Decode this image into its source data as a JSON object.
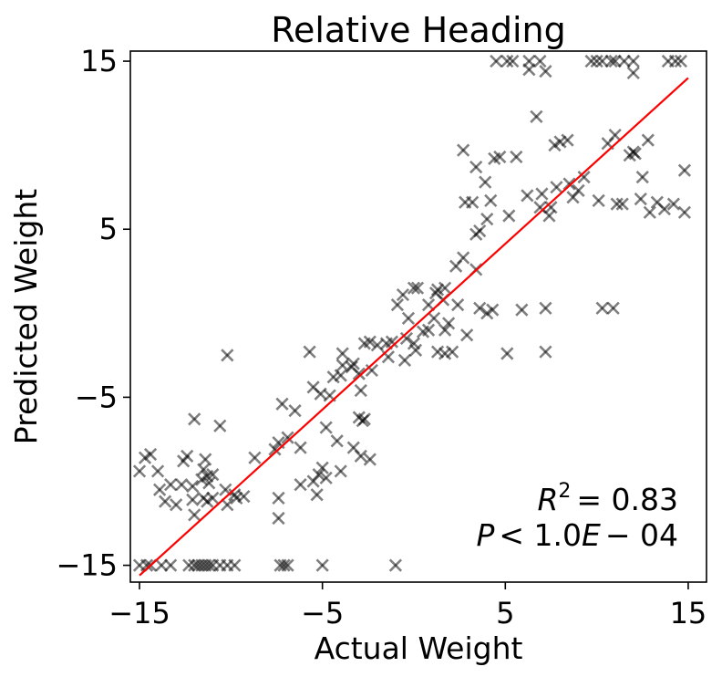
{
  "chart_data": {
    "type": "scatter",
    "title": "Relative Heading",
    "xlabel": "Actual Weight",
    "ylabel": "Predicted Weight",
    "xlim": [
      -15.5,
      16.0
    ],
    "ylim": [
      -16.0,
      15.6
    ],
    "xticks": [
      -15,
      -5,
      5,
      15
    ],
    "xtick_labels": [
      "−15",
      "−5",
      "5",
      "15"
    ],
    "yticks": [
      -15,
      -5,
      5,
      15
    ],
    "ytick_labels": [
      "−15",
      "−5",
      "5",
      "15"
    ],
    "grid": false,
    "marker": "x",
    "marker_color": "#000000",
    "marker_alpha": 0.5,
    "fit_line": {
      "color": "#ff0000",
      "x": [
        -15.0,
        15.0
      ],
      "y": [
        -15.6,
        14.0
      ]
    },
    "annotations": {
      "r2_symbol": "R",
      "r2_power": "2",
      "r2_value": "= 0.83",
      "p_symbol": "P",
      "p_value": "< 1.0",
      "p_symbol2": "E",
      "p_exp": "− 04"
    },
    "points": [
      [
        14.3,
        15
      ],
      [
        14.6,
        15
      ],
      [
        13.9,
        15
      ],
      [
        12.0,
        15
      ],
      [
        11.5,
        15
      ],
      [
        11.0,
        15
      ],
      [
        10.8,
        15
      ],
      [
        10.3,
        15
      ],
      [
        10.0,
        15
      ],
      [
        9.7,
        15
      ],
      [
        6.9,
        15
      ],
      [
        6.3,
        15
      ],
      [
        5.4,
        15
      ],
      [
        5.1,
        15
      ],
      [
        4.5,
        15
      ],
      [
        12.0,
        14.3
      ],
      [
        7.2,
        14.4
      ],
      [
        6.3,
        14.5
      ],
      [
        6.7,
        11.7
      ],
      [
        11.0,
        10.6
      ],
      [
        12.8,
        10.3
      ],
      [
        8.4,
        10.3
      ],
      [
        8.0,
        10.2
      ],
      [
        7.7,
        10.0
      ],
      [
        10.6,
        10.1
      ],
      [
        12.1,
        9.5
      ],
      [
        11.8,
        9.4
      ],
      [
        12.0,
        9.6
      ],
      [
        2.7,
        9.7
      ],
      [
        5.6,
        9.3
      ],
      [
        4.7,
        9.3
      ],
      [
        4.4,
        9.2
      ],
      [
        3.4,
        8.7
      ],
      [
        14.8,
        8.5
      ],
      [
        12.5,
        8.1
      ],
      [
        9.3,
        8.1
      ],
      [
        8.5,
        7.7
      ],
      [
        7.8,
        7.5
      ],
      [
        9.0,
        7.3
      ],
      [
        6.2,
        7.0
      ],
      [
        7.0,
        7.1
      ],
      [
        3.9,
        7.8
      ],
      [
        8.7,
        6.9
      ],
      [
        10.1,
        6.7
      ],
      [
        11.1,
        6.5
      ],
      [
        11.4,
        6.5
      ],
      [
        12.4,
        6.8
      ],
      [
        13.3,
        6.6
      ],
      [
        14.2,
        6.5
      ],
      [
        4.2,
        6.7
      ],
      [
        3.2,
        6.6
      ],
      [
        2.8,
        6.6
      ],
      [
        6.9,
        6.3
      ],
      [
        7.5,
        6.3
      ],
      [
        13.7,
        6.2
      ],
      [
        14.8,
        6.0
      ],
      [
        12.9,
        6.0
      ],
      [
        7.4,
        5.8
      ],
      [
        5.2,
        5.8
      ],
      [
        4.0,
        5.6
      ],
      [
        3.6,
        4.9
      ],
      [
        3.4,
        4.7
      ],
      [
        2.7,
        3.3
      ],
      [
        2.3,
        2.8
      ],
      [
        3.4,
        2.6
      ],
      [
        0.0,
        1.5
      ],
      [
        0.2,
        1.5
      ],
      [
        1.3,
        1.4
      ],
      [
        1.7,
        1.5
      ],
      [
        1.2,
        1.2
      ],
      [
        1.6,
        0.8
      ],
      [
        -0.6,
        1.1
      ],
      [
        -0.9,
        0.5
      ],
      [
        0.8,
        0.5
      ],
      [
        2.4,
        0.5
      ],
      [
        3.6,
        0.3
      ],
      [
        4.0,
        0.0
      ],
      [
        4.3,
        0.2
      ],
      [
        5.9,
        0.2
      ],
      [
        7.2,
        0.3
      ],
      [
        10.3,
        0.3
      ],
      [
        10.9,
        0.3
      ],
      [
        -0.3,
        -0.3
      ],
      [
        1.1,
        -0.3
      ],
      [
        1.9,
        -0.6
      ],
      [
        1.7,
        -1.0
      ],
      [
        2.9,
        -1.3
      ],
      [
        0.5,
        -1.1
      ],
      [
        0.8,
        -1.0
      ],
      [
        -2.7,
        -1.8
      ],
      [
        -2.4,
        -1.7
      ],
      [
        -2.0,
        -1.9
      ],
      [
        -1.5,
        -1.8
      ],
      [
        -1.2,
        -1.7
      ],
      [
        -0.4,
        -1.5
      ],
      [
        0.0,
        -1.8
      ],
      [
        0.1,
        -2.2
      ],
      [
        -5.7,
        -2.3
      ],
      [
        -10.2,
        -2.5
      ],
      [
        -3.9,
        -2.4
      ],
      [
        -1.4,
        -2.6
      ],
      [
        -0.5,
        -2.8
      ],
      [
        1.3,
        -2.3
      ],
      [
        1.7,
        -2.4
      ],
      [
        2.1,
        -2.3
      ],
      [
        5.1,
        -2.4
      ],
      [
        7.2,
        -2.3
      ],
      [
        -3.3,
        -3.0
      ],
      [
        -3.4,
        -3.2
      ],
      [
        -3.9,
        -3.1
      ],
      [
        -3.0,
        -3.6
      ],
      [
        -2.3,
        -3.4
      ],
      [
        -4.0,
        -3.7
      ],
      [
        -4.4,
        -3.8
      ],
      [
        -5.1,
        -4.8
      ],
      [
        -5.5,
        -4.4
      ],
      [
        -2.9,
        -4.6
      ],
      [
        -4.6,
        -4.9
      ],
      [
        -7.2,
        -5.4
      ],
      [
        -6.5,
        -5.8
      ],
      [
        -3.0,
        -6.2
      ],
      [
        -2.7,
        -6.3
      ],
      [
        -2.8,
        -6.4
      ],
      [
        -12.0,
        -6.3
      ],
      [
        -10.6,
        -6.7
      ],
      [
        -4.8,
        -6.8
      ],
      [
        -6.9,
        -7.4
      ],
      [
        -7.4,
        -7.7
      ],
      [
        -4.2,
        -7.6
      ],
      [
        -6.2,
        -8.0
      ],
      [
        -7.6,
        -8.1
      ],
      [
        -3.3,
        -8.0
      ],
      [
        -2.4,
        -8.7
      ],
      [
        -2.9,
        -8.5
      ],
      [
        -8.7,
        -8.6
      ],
      [
        -14.4,
        -8.4
      ],
      [
        -14.7,
        -8.6
      ],
      [
        -11.4,
        -8.7
      ],
      [
        -12.4,
        -8.5
      ],
      [
        -12.6,
        -8.8
      ],
      [
        -14.0,
        -9.4
      ],
      [
        -15.0,
        -9.4
      ],
      [
        -11.5,
        -9.3
      ],
      [
        -11.3,
        -9.7
      ],
      [
        -11.0,
        -9.6
      ],
      [
        -5.0,
        -9.2
      ],
      [
        -5.2,
        -9.6
      ],
      [
        -4.8,
        -9.8
      ],
      [
        -4.0,
        -9.4
      ],
      [
        -11.6,
        -9.9
      ],
      [
        -11.2,
        -10.1
      ],
      [
        -13.9,
        -10.5
      ],
      [
        -13.3,
        -10.2
      ],
      [
        -12.7,
        -10.2
      ],
      [
        -12.1,
        -10.3
      ],
      [
        -10.3,
        -10.5
      ],
      [
        -9.8,
        -10.8
      ],
      [
        -6.2,
        -10.2
      ],
      [
        -5.5,
        -10.0
      ],
      [
        -7.4,
        -11.0
      ],
      [
        -5.3,
        -10.8
      ],
      [
        -13.6,
        -11.2
      ],
      [
        -12.1,
        -11.1
      ],
      [
        -11.5,
        -11.0
      ],
      [
        -11.3,
        -11.2
      ],
      [
        -11.0,
        -11.0
      ],
      [
        -9.7,
        -11.0
      ],
      [
        -9.3,
        -10.9
      ],
      [
        -13.0,
        -11.4
      ],
      [
        -12.0,
        -12.0
      ],
      [
        -7.4,
        -12.2
      ],
      [
        -10.2,
        -11.4
      ],
      [
        -15.0,
        -15
      ],
      [
        -14.6,
        -15
      ],
      [
        -14.4,
        -15
      ],
      [
        -13.8,
        -15
      ],
      [
        -13.3,
        -15
      ],
      [
        -12.3,
        -15
      ],
      [
        -12.0,
        -15
      ],
      [
        -11.8,
        -15
      ],
      [
        -11.6,
        -15
      ],
      [
        -11.4,
        -15
      ],
      [
        -11.2,
        -15
      ],
      [
        -11.0,
        -15
      ],
      [
        -10.6,
        -15
      ],
      [
        -10.2,
        -15
      ],
      [
        -9.8,
        -15
      ],
      [
        -7.3,
        -15
      ],
      [
        -7.1,
        -15
      ],
      [
        -6.9,
        -15
      ],
      [
        -5.0,
        -15
      ],
      [
        -1.0,
        -15
      ]
    ]
  }
}
